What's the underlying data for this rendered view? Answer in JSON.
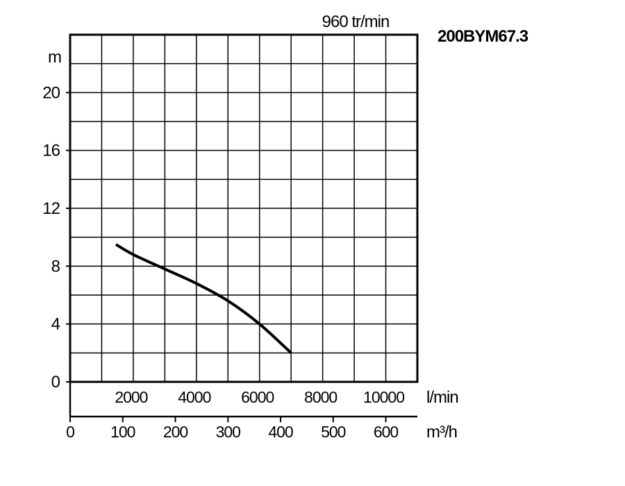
{
  "chart_data": {
    "type": "line",
    "title": "200BYM67.3",
    "subtitle": "960 tr/min",
    "ylabel": "m",
    "ylim": [
      0,
      24
    ],
    "yticks": [
      0,
      4,
      8,
      12,
      16,
      20
    ],
    "xlabel": "l/min",
    "xlim": [
      0,
      11000
    ],
    "xticks": [
      2000,
      4000,
      6000,
      8000,
      10000
    ],
    "x2label": "m³/h",
    "x2lim": [
      0,
      660
    ],
    "x2ticks": [
      0,
      100,
      200,
      300,
      400,
      500,
      600
    ],
    "grid": true,
    "series": [
      {
        "x": [
          1450,
          2000,
          3000,
          4000,
          5000,
          6000,
          7000
        ],
        "y": [
          9.5,
          8.8,
          7.8,
          6.8,
          5.6,
          4.0,
          2.0
        ]
      }
    ]
  }
}
